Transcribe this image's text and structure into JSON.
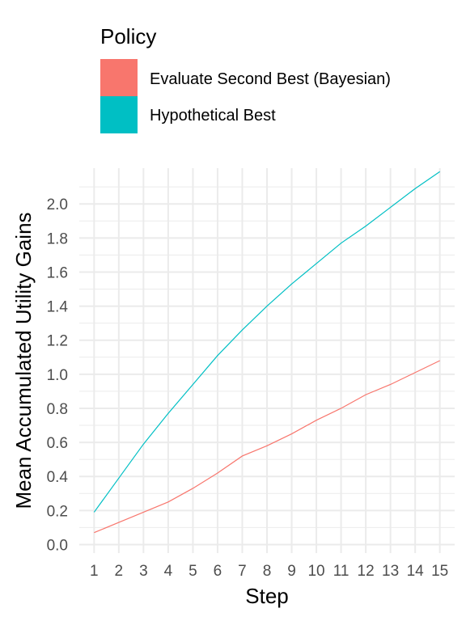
{
  "legend": {
    "title": "Policy",
    "position": "top",
    "items": [
      {
        "label": "Evaluate Second Best (Bayesian)",
        "color": "#F8766D"
      },
      {
        "label": "Hypothetical Best",
        "color": "#00BFC4"
      }
    ]
  },
  "chart_data": {
    "type": "line",
    "title": "",
    "xlabel": "Step",
    "ylabel": "Mean Accumulated Utility Gains",
    "x": [
      1,
      2,
      3,
      4,
      5,
      6,
      7,
      8,
      9,
      10,
      11,
      12,
      13,
      14,
      15
    ],
    "xlim": [
      0.4,
      15.6
    ],
    "ylim": [
      -0.05,
      2.21
    ],
    "yticks": [
      0.0,
      0.2,
      0.4,
      0.6,
      0.8,
      1.0,
      1.2,
      1.4,
      1.6,
      1.8,
      2.0
    ],
    "ytick_labels": [
      "0.0",
      "0.2",
      "0.4",
      "0.6",
      "0.8",
      "1.0",
      "1.2",
      "1.4",
      "1.6",
      "1.8",
      "2.0"
    ],
    "xtick_labels": [
      "1",
      "2",
      "3",
      "4",
      "5",
      "6",
      "7",
      "8",
      "9",
      "10",
      "11",
      "12",
      "13",
      "14",
      "15"
    ],
    "grid": true,
    "series": [
      {
        "name": "Evaluate Second Best (Bayesian)",
        "color": "#F8766D",
        "values": [
          0.07,
          0.13,
          0.19,
          0.25,
          0.33,
          0.42,
          0.52,
          0.58,
          0.65,
          0.73,
          0.8,
          0.88,
          0.94,
          1.01,
          1.08
        ]
      },
      {
        "name": "Hypothetical Best",
        "color": "#00BFC4",
        "values": [
          0.19,
          0.39,
          0.59,
          0.77,
          0.94,
          1.11,
          1.26,
          1.4,
          1.53,
          1.65,
          1.77,
          1.87,
          1.98,
          2.09,
          2.19
        ]
      }
    ]
  }
}
